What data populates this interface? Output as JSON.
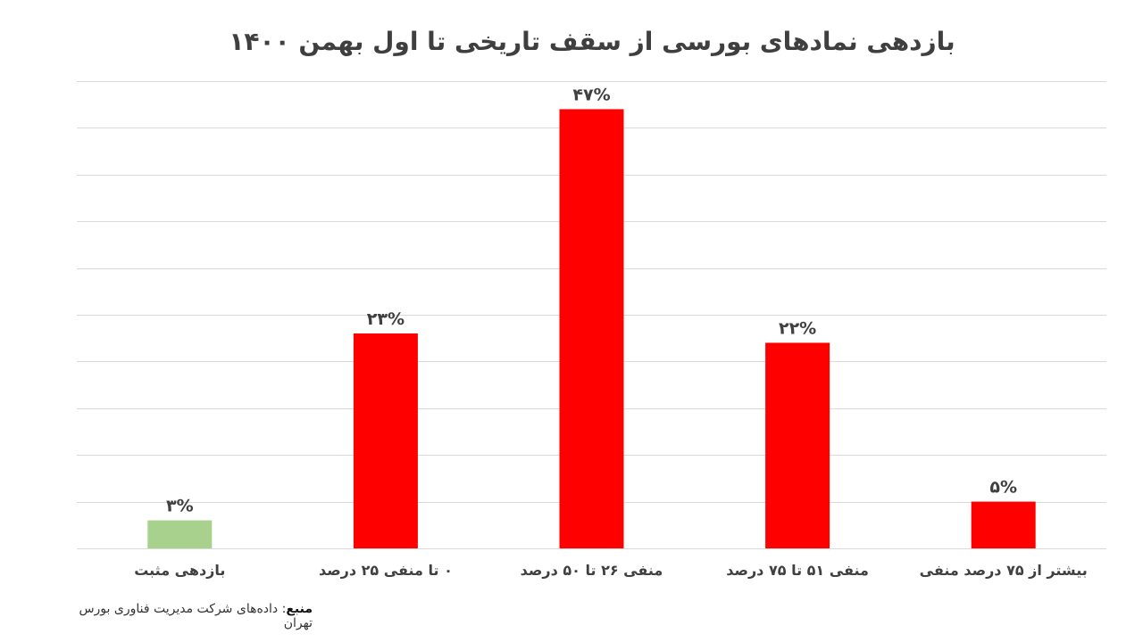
{
  "chart_data": {
    "type": "bar",
    "title": "بازدهی نمادهای بورسی از سقف تاریخی تا اول بهمن ۱۴۰۰",
    "categories": [
      "بازدهی مثبت",
      "۰ تا منفی ۲۵ درصد",
      "منفی ۲۶ تا ۵۰ درصد",
      "منفی ۵۱ تا ۷۵ درصد",
      "بیشتر از ۷۵ درصد منفی"
    ],
    "values": [
      3,
      23,
      47,
      22,
      5
    ],
    "data_labels": [
      "۳%",
      "۲۳%",
      "۴۷%",
      "۲۲%",
      "۵%"
    ],
    "bar_colors": [
      "#a9d18e",
      "#ff0000",
      "#ff0000",
      "#ff0000",
      "#ff0000"
    ],
    "ylim": [
      0,
      50
    ],
    "y_gridline_step": 5,
    "grid": true,
    "xlabel": "",
    "ylabel": ""
  },
  "source": {
    "key": "منبع",
    "text": ": داده‌های شرکت مدیریت فناوری بورس تهران"
  },
  "colors": {
    "positive": "#a9d18e",
    "negative": "#ff0000",
    "gridline": "#d9d9d9"
  }
}
